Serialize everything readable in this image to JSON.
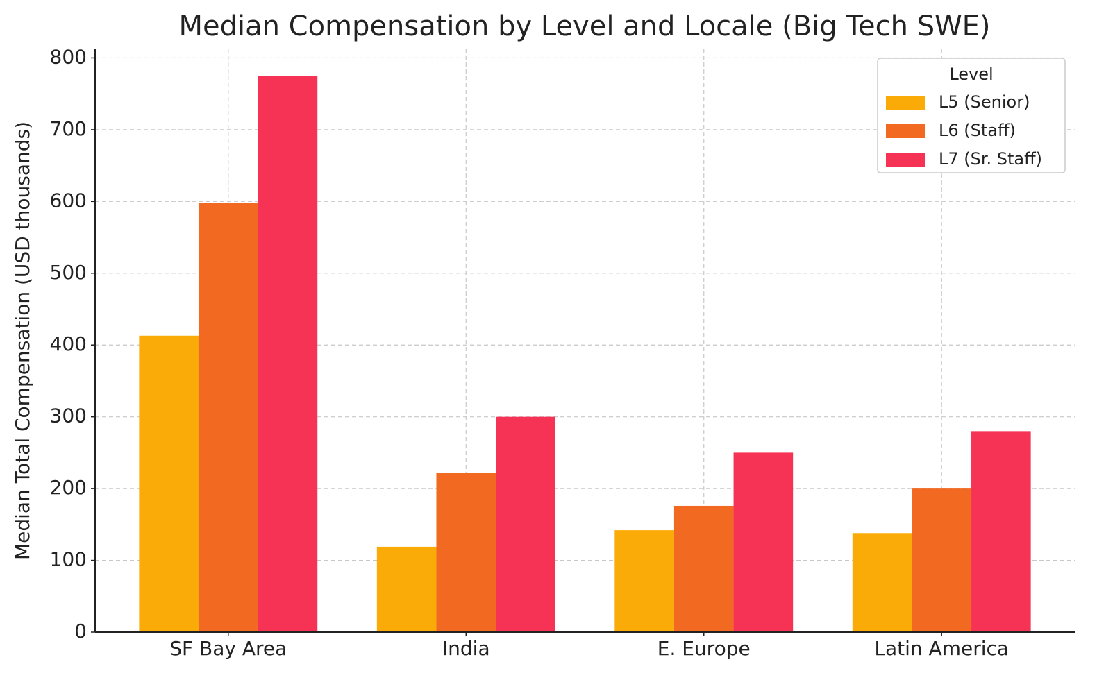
{
  "chart_data": {
    "type": "bar",
    "title": "Median Compensation by Level and Locale (Big Tech SWE)",
    "y_label": "Median Total Compensation (USD thousands)",
    "categories": [
      "SF Bay Area",
      "India",
      "E. Europe",
      "Latin America"
    ],
    "series": [
      {
        "name": "L5 (Senior)",
        "color": "#fbab07",
        "values": [
          413,
          119,
          142,
          138
        ]
      },
      {
        "name": "L6 (Staff)",
        "color": "#f26a21",
        "values": [
          598,
          222,
          176,
          200
        ]
      },
      {
        "name": "L7 (Sr. Staff)",
        "color": "#f63355",
        "values": [
          775,
          300,
          250,
          280
        ]
      }
    ],
    "legend_title": "Level",
    "legend": "upper right",
    "ylim": [
      0,
      813
    ],
    "yticks": [
      0,
      100,
      200,
      300,
      400,
      500,
      600,
      700,
      800
    ],
    "grid": true
  }
}
